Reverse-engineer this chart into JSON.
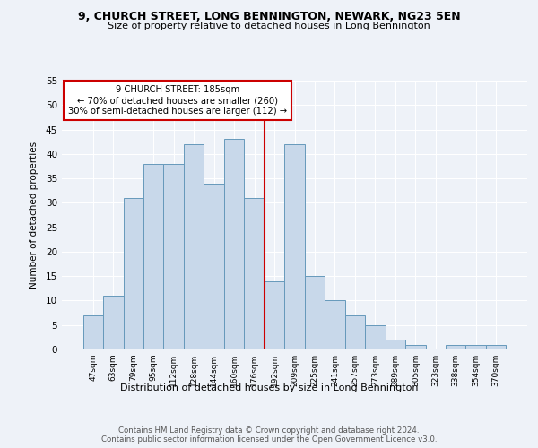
{
  "title": "9, CHURCH STREET, LONG BENNINGTON, NEWARK, NG23 5EN",
  "subtitle": "Size of property relative to detached houses in Long Bennington",
  "xlabel": "Distribution of detached houses by size in Long Bennington",
  "ylabel": "Number of detached properties",
  "bar_labels": [
    "47sqm",
    "63sqm",
    "79sqm",
    "95sqm",
    "112sqm",
    "128sqm",
    "144sqm",
    "160sqm",
    "176sqm",
    "192sqm",
    "209sqm",
    "225sqm",
    "241sqm",
    "257sqm",
    "273sqm",
    "289sqm",
    "305sqm",
    "323sqm",
    "338sqm",
    "354sqm",
    "370sqm"
  ],
  "bar_values": [
    7,
    11,
    31,
    38,
    38,
    42,
    34,
    43,
    31,
    14,
    42,
    15,
    10,
    7,
    5,
    2,
    1,
    0,
    1,
    1,
    1
  ],
  "bar_color": "#c8d8ea",
  "bar_edge_color": "#6699bb",
  "vline_x_index": 8,
  "vline_color": "#cc0000",
  "annotation_line1": "9 CHURCH STREET: 185sqm",
  "annotation_line2": "← 70% of detached houses are smaller (260)",
  "annotation_line3": "30% of semi-detached houses are larger (112) →",
  "annotation_box_color": "#cc0000",
  "ylim": [
    0,
    55
  ],
  "yticks": [
    0,
    5,
    10,
    15,
    20,
    25,
    30,
    35,
    40,
    45,
    50,
    55
  ],
  "footer_line1": "Contains HM Land Registry data © Crown copyright and database right 2024.",
  "footer_line2": "Contains public sector information licensed under the Open Government Licence v3.0.",
  "bg_color": "#eef2f8",
  "plot_bg_color": "#eef2f8"
}
